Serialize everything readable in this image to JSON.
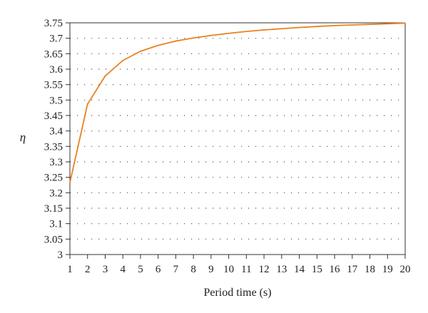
{
  "chart_data": {
    "type": "line",
    "title": "",
    "xlabel": "Period time (s)",
    "ylabel": "η",
    "x": [
      1,
      2,
      3,
      4,
      5,
      6,
      7,
      8,
      9,
      10,
      11,
      12,
      13,
      14,
      15,
      16,
      17,
      18,
      19,
      20
    ],
    "series": [
      {
        "values": [
          3.233,
          3.487,
          3.578,
          3.628,
          3.658,
          3.677,
          3.691,
          3.701,
          3.709,
          3.716,
          3.722,
          3.727,
          3.731,
          3.735,
          3.738,
          3.741,
          3.743,
          3.745,
          3.747,
          3.749
        ],
        "color": "#e8821e"
      }
    ],
    "xlim": [
      1,
      20
    ],
    "ylim": [
      3,
      3.75
    ],
    "xticks": [
      "1",
      "2",
      "3",
      "4",
      "5",
      "6",
      "7",
      "8",
      "9",
      "10",
      "11",
      "12",
      "13",
      "14",
      "15",
      "16",
      "17",
      "18",
      "19",
      "20"
    ],
    "yticks": [
      "3.75",
      "3.7",
      "3.65",
      "3.6",
      "3.55",
      "3.5",
      "3.45",
      "3.4",
      "3.35",
      "3.3",
      "3.25",
      "3.2",
      "3.15",
      "3.1",
      "3.05",
      "3"
    ],
    "grid": "horizontal-dotted",
    "legend": "none"
  }
}
